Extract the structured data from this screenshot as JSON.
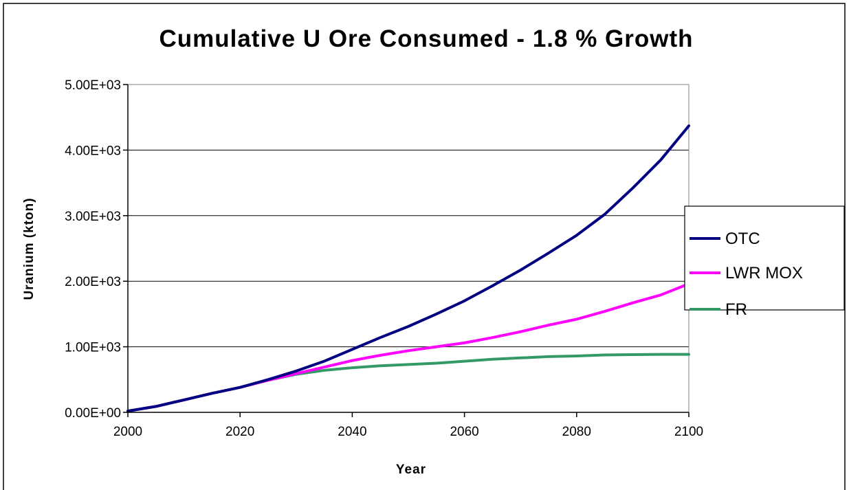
{
  "chart_data": {
    "type": "line",
    "title": "Cumulative U Ore Consumed - 1.8 % Growth",
    "xlabel": "Year",
    "ylabel": "Uranium (kton)",
    "xlim": [
      2000,
      2100
    ],
    "ylim": [
      0,
      5000
    ],
    "x_ticks": [
      "2000",
      "2020",
      "2040",
      "2060",
      "2080",
      "2100"
    ],
    "y_ticks": [
      "0.00E+00",
      "1.00E+03",
      "2.00E+03",
      "3.00E+03",
      "4.00E+03",
      "5.00E+03"
    ],
    "y_tick_values": [
      0,
      1000,
      2000,
      3000,
      4000,
      5000
    ],
    "x_tick_values": [
      2000,
      2020,
      2040,
      2060,
      2080,
      2100
    ],
    "grid": "horizontal",
    "legend_position": "right",
    "x": [
      2000,
      2005,
      2010,
      2015,
      2020,
      2025,
      2030,
      2035,
      2040,
      2045,
      2050,
      2055,
      2060,
      2065,
      2070,
      2075,
      2080,
      2085,
      2090,
      2095,
      2100
    ],
    "series": [
      {
        "name": "OTC",
        "color": "#000080",
        "values": [
          20,
          90,
          190,
          290,
          380,
          500,
          630,
          780,
          960,
          1140,
          1310,
          1500,
          1700,
          1930,
          2170,
          2430,
          2700,
          3020,
          3420,
          3850,
          4370
        ]
      },
      {
        "name": "LWR MOX",
        "color": "#FF00FF",
        "values": [
          20,
          90,
          190,
          290,
          380,
          490,
          590,
          690,
          790,
          870,
          940,
          1000,
          1060,
          1140,
          1230,
          1330,
          1420,
          1540,
          1670,
          1790,
          1960
        ]
      },
      {
        "name": "FR",
        "color": "#339966",
        "values": [
          20,
          90,
          190,
          290,
          380,
          490,
          580,
          640,
          680,
          710,
          730,
          750,
          780,
          810,
          830,
          850,
          860,
          875,
          880,
          885,
          885
        ]
      }
    ]
  }
}
